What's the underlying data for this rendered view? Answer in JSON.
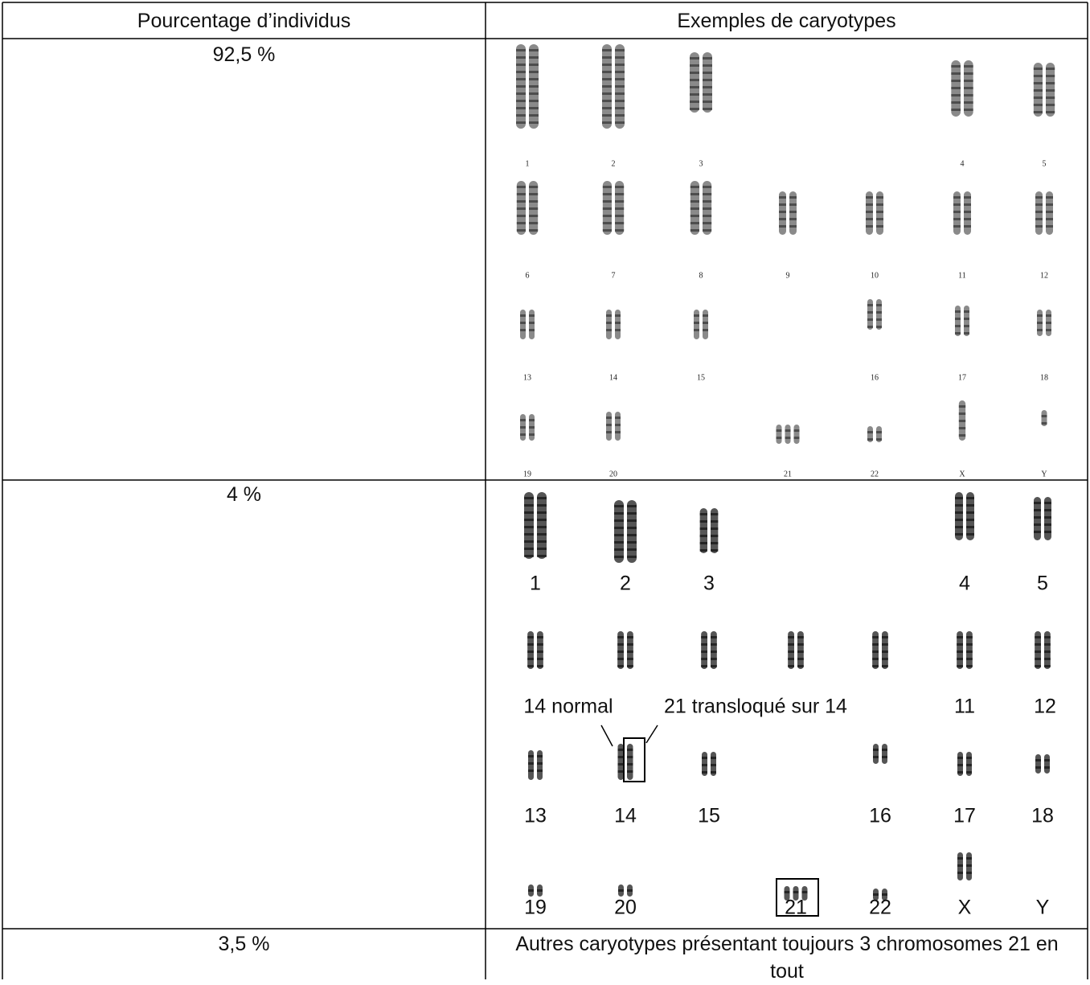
{
  "table": {
    "header": [
      "Pourcentage d’individus",
      "Exemples de caryotypes"
    ],
    "rows": [
      {
        "percent": "92,5 %",
        "karyotype": {
          "labels": [
            [
              "1",
              "2",
              "3",
              "4",
              "5"
            ],
            [
              "6",
              "7",
              "8",
              "9",
              "10",
              "11",
              "12"
            ],
            [
              "13",
              "14",
              "15",
              "16",
              "17",
              "18"
            ],
            [
              "19",
              "20",
              "21",
              "22",
              "X",
              "Y"
            ]
          ]
        }
      },
      {
        "percent": "4 %",
        "karyotype": {
          "labels": [
            [
              "1",
              "2",
              "3",
              "4",
              "5"
            ],
            [
              "11",
              "12"
            ],
            [
              "13",
              "14",
              "15",
              "16",
              "17",
              "18"
            ],
            [
              "19",
              "20",
              "21",
              "22",
              "X",
              "Y"
            ]
          ],
          "annotations": [
            "14 normal",
            "21 transloqué sur 14"
          ]
        }
      },
      {
        "percent": "3,5 %",
        "description": "Autres caryotypes présentant toujours 3 chromosomes 21 en tout"
      }
    ]
  }
}
